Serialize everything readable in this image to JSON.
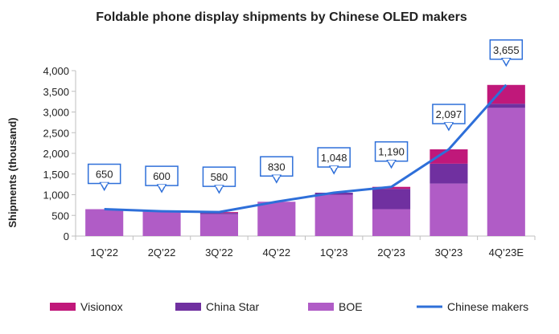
{
  "chart_data": {
    "type": "bar",
    "title": "Foldable phone display shipments by Chinese OLED makers",
    "ylabel": "Shipments (thousand)",
    "xlabel": "",
    "ylim": [
      0,
      4000
    ],
    "yticks": [
      0,
      500,
      1000,
      1500,
      2000,
      2500,
      3000,
      3500,
      4000
    ],
    "ytick_labels": [
      "0",
      "500",
      "1,000",
      "1,500",
      "2,000",
      "2,500",
      "3,000",
      "3,500",
      "4,000"
    ],
    "categories": [
      "1Q’22",
      "2Q’22",
      "3Q’22",
      "4Q’22",
      "1Q’23",
      "2Q’23",
      "3Q’23",
      "4Q’23E"
    ],
    "stacked": true,
    "series": [
      {
        "name": "BOE",
        "kind": "bar",
        "color": "#b05cc6",
        "values": [
          650,
          600,
          530,
          830,
          1000,
          650,
          1270,
          3100
        ]
      },
      {
        "name": "China Star",
        "kind": "bar",
        "color": "#7030a0",
        "values": [
          0,
          0,
          30,
          0,
          48,
          490,
          480,
          100
        ]
      },
      {
        "name": "Visionox",
        "kind": "bar",
        "color": "#c0187a",
        "values": [
          0,
          0,
          20,
          0,
          0,
          50,
          347,
          455
        ]
      },
      {
        "name": "Chinese makers",
        "kind": "line",
        "color": "#2e6fd9",
        "values": [
          650,
          600,
          580,
          830,
          1048,
          1190,
          2097,
          3655
        ]
      }
    ],
    "data_labels": [
      "650",
      "600",
      "580",
      "830",
      "1,048",
      "1,190",
      "2,097",
      "3,655"
    ],
    "legend": {
      "placement": "bottom",
      "items": [
        {
          "label": "Visionox",
          "kind": "swatch",
          "color": "#c0187a"
        },
        {
          "label": "China Star",
          "kind": "swatch",
          "color": "#7030a0"
        },
        {
          "label": "BOE",
          "kind": "swatch",
          "color": "#b05cc6"
        },
        {
          "label": "Chinese makers",
          "kind": "line",
          "color": "#2e6fd9"
        }
      ]
    },
    "grid": false
  }
}
